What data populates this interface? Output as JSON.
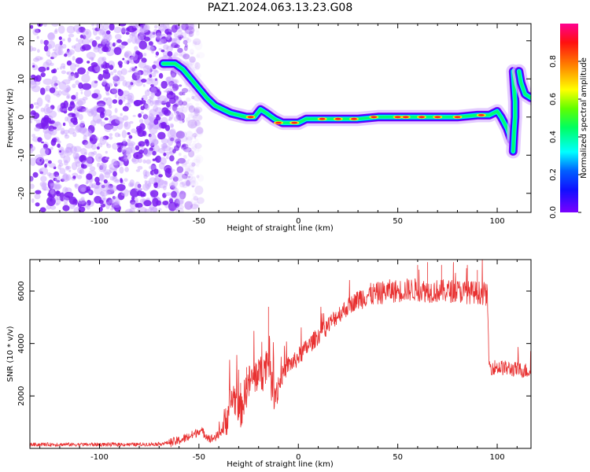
{
  "figure": {
    "title": "PAZ1.2024.063.13.23.G08"
  },
  "chart_data": [
    {
      "type": "heatmap",
      "xlabel": "Height of straight line (km)",
      "ylabel": "Frequency (Hz)",
      "xlim": [
        -135,
        117
      ],
      "ylim": [
        -25,
        24.5
      ],
      "xticks": [
        -100,
        -50,
        0,
        50,
        100
      ],
      "yticks": [
        -20,
        -10,
        0,
        10,
        20
      ],
      "colorbar": {
        "label": "Normalized spectral amplitude",
        "range": [
          0,
          1
        ],
        "ticks": [
          "0.0",
          "0.2",
          "0.4",
          "0.6",
          "0.8"
        ],
        "colormap": "rainbow"
      },
      "noise_region_x": [
        -135,
        -57
      ],
      "ridge": [
        [
          -68,
          14
        ],
        [
          -62,
          14
        ],
        [
          -58,
          12.5
        ],
        [
          -54,
          10
        ],
        [
          -50,
          7.5
        ],
        [
          -46,
          5
        ],
        [
          -42,
          3
        ],
        [
          -38,
          2
        ],
        [
          -34,
          1
        ],
        [
          -30,
          0.5
        ],
        [
          -26,
          0
        ],
        [
          -22,
          0
        ],
        [
          -19,
          2
        ],
        [
          -16,
          1
        ],
        [
          -12,
          -0.5
        ],
        [
          -8,
          -1.5
        ],
        [
          -4,
          -1.5
        ],
        [
          0,
          -1.5
        ],
        [
          4,
          -0.5
        ],
        [
          10,
          -0.5
        ],
        [
          20,
          -0.5
        ],
        [
          30,
          -0.5
        ],
        [
          40,
          0
        ],
        [
          50,
          0
        ],
        [
          60,
          0
        ],
        [
          70,
          0
        ],
        [
          80,
          0
        ],
        [
          90,
          0.5
        ],
        [
          96,
          0.5
        ],
        [
          100,
          1.5
        ],
        [
          102,
          0
        ],
        [
          105,
          -3
        ],
        [
          107,
          -6
        ]
      ],
      "ridge_far": [
        [
          108,
          12
        ],
        [
          108.5,
          8
        ],
        [
          109,
          4
        ],
        [
          109,
          0
        ],
        [
          108.5,
          -4
        ],
        [
          108,
          -9
        ]
      ],
      "ridge_edge": [
        [
          111,
          12
        ],
        [
          112,
          9
        ],
        [
          114,
          6
        ],
        [
          117,
          5
        ]
      ]
    },
    {
      "type": "line",
      "xlabel": "Height of straight line (km)",
      "ylabel": "SNR (10 * v/v)",
      "xlim": [
        -135,
        117
      ],
      "ylim": [
        0,
        7200
      ],
      "xticks": [
        -100,
        -50,
        0,
        50,
        100
      ],
      "yticks": [
        2000,
        4000,
        6000
      ],
      "color": "#e83030",
      "series": [
        {
          "x": [
            -135,
            -120,
            -100,
            -80,
            -70,
            -62,
            -58,
            -55,
            -52,
            -50,
            -47,
            -44,
            -40,
            -37,
            -35,
            -33,
            -31,
            -29,
            -27,
            -25,
            -22,
            -20,
            -18,
            -16,
            -15,
            -14,
            -12,
            -10,
            -8,
            -5,
            -2,
            0,
            5,
            10,
            15,
            20,
            25,
            30,
            35,
            40,
            45,
            50,
            55,
            60,
            65,
            70,
            75,
            80,
            85,
            90,
            94,
            95,
            96,
            100,
            105,
            110,
            117
          ],
          "y": [
            150,
            150,
            150,
            150,
            170,
            250,
            350,
            450,
            550,
            700,
            550,
            350,
            500,
            900,
            1500,
            2000,
            1800,
            1400,
            2000,
            2500,
            2700,
            2900,
            2800,
            3300,
            3500,
            2600,
            2100,
            2400,
            2800,
            3200,
            3300,
            3500,
            3900,
            4300,
            4700,
            5100,
            5400,
            5700,
            5850,
            5900,
            6000,
            6000,
            6050,
            6050,
            6000,
            6000,
            6000,
            6000,
            5950,
            5950,
            5900,
            5850,
            3100,
            3100,
            3050,
            3000,
            2950
          ],
          "spikes": [
            [
              -29,
              2500
            ],
            [
              -26,
              3100
            ],
            [
              -20,
              3400
            ],
            [
              -15,
              5400
            ],
            [
              60,
              7000
            ],
            [
              65,
              7100
            ],
            [
              72,
              7000
            ],
            [
              78,
              7100
            ],
            [
              85,
              7000
            ],
            [
              90,
              6800
            ]
          ]
        }
      ]
    }
  ]
}
